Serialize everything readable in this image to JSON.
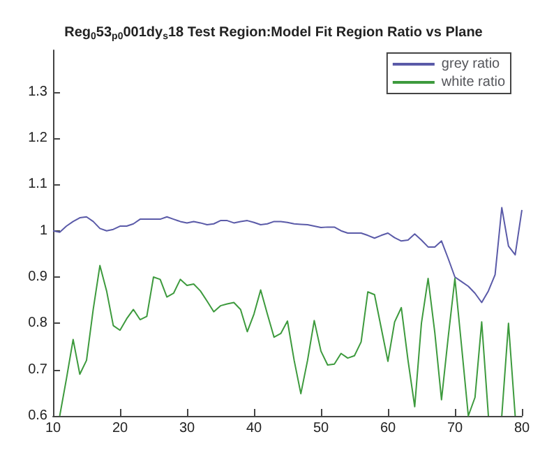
{
  "chart_data": {
    "type": "line",
    "title": "Reg$_{0}$53$_{p0}$001dy$_{s}$18 Test Region:Model Fit Region Ratio vs Plane",
    "x": [
      10,
      11,
      12,
      13,
      14,
      15,
      16,
      17,
      18,
      19,
      20,
      21,
      22,
      23,
      24,
      25,
      26,
      27,
      28,
      29,
      30,
      31,
      32,
      33,
      34,
      35,
      36,
      37,
      38,
      39,
      40,
      41,
      42,
      43,
      44,
      45,
      46,
      47,
      48,
      49,
      50,
      51,
      52,
      53,
      54,
      55,
      56,
      57,
      58,
      59,
      60,
      61,
      62,
      63,
      64,
      65,
      66,
      67,
      68,
      69,
      70,
      71,
      72,
      73,
      74,
      75,
      76,
      77,
      78,
      79,
      80
    ],
    "series": [
      {
        "name": "grey ratio",
        "color": "#5a5aa8",
        "values": [
          1.0,
          0.997,
          1.01,
          1.02,
          1.028,
          1.03,
          1.02,
          1.005,
          1.0,
          1.003,
          1.01,
          1.01,
          1.015,
          1.025,
          1.025,
          1.025,
          1.025,
          1.03,
          1.025,
          1.02,
          1.017,
          1.02,
          1.017,
          1.013,
          1.015,
          1.022,
          1.022,
          1.017,
          1.02,
          1.022,
          1.018,
          1.013,
          1.015,
          1.02,
          1.02,
          1.018,
          1.015,
          1.014,
          1.013,
          1.01,
          1.007,
          1.008,
          1.008,
          1.0,
          0.995,
          0.995,
          0.995,
          0.99,
          0.984,
          0.99,
          0.995,
          0.985,
          0.978,
          0.98,
          0.993,
          0.98,
          0.965,
          0.965,
          0.978,
          0.94,
          0.9,
          0.89,
          0.88,
          0.865,
          0.845,
          0.87,
          0.905,
          1.05,
          0.967,
          0.948,
          1.045
        ]
      },
      {
        "name": "white ratio",
        "color": "#3d9a3d",
        "values": [
          null,
          0.6,
          0.68,
          0.765,
          0.69,
          0.72,
          0.83,
          0.925,
          0.87,
          0.795,
          0.785,
          0.81,
          0.83,
          0.808,
          0.815,
          0.9,
          0.895,
          0.857,
          0.865,
          0.895,
          0.882,
          0.885,
          0.87,
          0.848,
          0.825,
          0.838,
          0.842,
          0.845,
          0.83,
          0.782,
          0.82,
          0.872,
          0.82,
          0.77,
          0.778,
          0.805,
          0.72,
          0.648,
          0.72,
          0.806,
          0.74,
          0.71,
          0.712,
          0.735,
          0.725,
          0.73,
          0.76,
          0.868,
          0.862,
          0.79,
          0.718,
          0.803,
          0.834,
          0.72,
          0.62,
          0.8,
          0.897,
          0.78,
          0.635,
          0.77,
          0.897,
          0.75,
          0.6,
          0.64,
          0.803,
          0.6,
          null,
          0.6,
          0.8,
          0.6,
          null
        ]
      }
    ],
    "xlim": [
      10,
      80
    ],
    "xticks": [
      10,
      20,
      30,
      40,
      50,
      60,
      70,
      80
    ],
    "ylim": [
      0.6,
      1.39
    ],
    "yticks": [
      0.6,
      0.7,
      0.8,
      0.9,
      1,
      1.1,
      1.2,
      1.3
    ],
    "legend": "top right",
    "marker": "none",
    "line_style": "solid",
    "grid": false
  }
}
